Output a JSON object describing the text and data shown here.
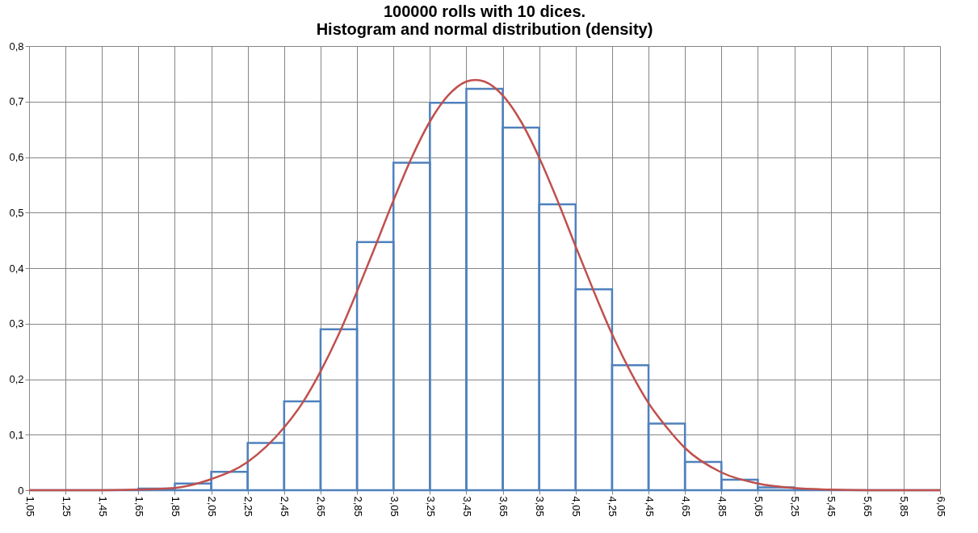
{
  "chart_data": {
    "type": "histogram",
    "title": "100000 rolls with 10 dices.\nHistogram and normal distribution (density)",
    "series": [
      {
        "color": "#4f81bd",
        "bins": [
          1.05,
          1.25,
          1.45,
          1.65,
          1.85,
          2.05,
          2.25,
          2.45,
          2.65,
          2.85,
          3.05,
          3.25,
          3.45,
          3.65,
          3.85,
          4.05,
          4.25,
          4.45,
          4.65,
          4.85,
          5.05,
          5.25,
          5.45,
          5.65,
          5.85,
          6.05
        ],
        "values": [
          0,
          0,
          0,
          0.003,
          0.012,
          0.033,
          0.085,
          0.16,
          0.29,
          0.447,
          0.59,
          0.698,
          0.723,
          0.653,
          0.515,
          0.362,
          0.225,
          0.12,
          0.051,
          0.019,
          0.005,
          0.001,
          0,
          0,
          0
        ]
      },
      {
        "type": "line",
        "color": "#c0504d",
        "x": [
          1.05,
          1.45,
          1.65,
          1.85,
          2.05,
          2.25,
          2.45,
          2.55,
          2.65,
          2.75,
          2.85,
          2.95,
          3.05,
          3.15,
          3.25,
          3.35,
          3.45,
          3.5,
          3.55,
          3.65,
          3.75,
          3.85,
          3.95,
          4.05,
          4.15,
          4.25,
          4.35,
          4.45,
          4.55,
          4.65,
          4.85,
          5.05,
          5.25,
          5.45,
          5.65,
          6.05
        ],
        "values": [
          0,
          0,
          0.001,
          0.004,
          0.02,
          0.051,
          0.113,
          0.157,
          0.214,
          0.281,
          0.358,
          0.439,
          0.522,
          0.599,
          0.664,
          0.711,
          0.736,
          0.739,
          0.736,
          0.711,
          0.664,
          0.599,
          0.522,
          0.439,
          0.358,
          0.281,
          0.214,
          0.157,
          0.113,
          0.076,
          0.032,
          0.012,
          0.004,
          0.001,
          0,
          0
        ]
      }
    ],
    "xlim": [
      1.05,
      6.05
    ],
    "xticks": [
      {
        "value": 1.05,
        "label": "1,05"
      },
      {
        "value": 1.25,
        "label": "1,25"
      },
      {
        "value": 1.45,
        "label": "1,45"
      },
      {
        "value": 1.65,
        "label": "1,65"
      },
      {
        "value": 1.85,
        "label": "1,85"
      },
      {
        "value": 2.05,
        "label": "2,05"
      },
      {
        "value": 2.25,
        "label": "2,25"
      },
      {
        "value": 2.45,
        "label": "2,45"
      },
      {
        "value": 2.65,
        "label": "2,65"
      },
      {
        "value": 2.85,
        "label": "2,85"
      },
      {
        "value": 3.05,
        "label": "3,05"
      },
      {
        "value": 3.25,
        "label": "3,25"
      },
      {
        "value": 3.45,
        "label": "3,45"
      },
      {
        "value": 3.65,
        "label": "3,65"
      },
      {
        "value": 3.85,
        "label": "3,85"
      },
      {
        "value": 4.05,
        "label": "4,05"
      },
      {
        "value": 4.25,
        "label": "4,25"
      },
      {
        "value": 4.45,
        "label": "4,45"
      },
      {
        "value": 4.65,
        "label": "4,65"
      },
      {
        "value": 4.85,
        "label": "4,85"
      },
      {
        "value": 5.05,
        "label": "5,05"
      },
      {
        "value": 5.25,
        "label": "5,25"
      },
      {
        "value": 5.45,
        "label": "5,45"
      },
      {
        "value": 5.65,
        "label": "5,65"
      },
      {
        "value": 5.85,
        "label": "5,85"
      },
      {
        "value": 6.05,
        "label": "6,05"
      }
    ],
    "ylim": [
      0,
      0.8
    ],
    "yticks": [
      0,
      {
        "value": 0.1,
        "label": "0,1"
      },
      {
        "value": 0.2,
        "label": "0,2"
      },
      {
        "value": 0.3,
        "label": "0,3"
      },
      {
        "value": 0.4,
        "label": "0,4"
      },
      {
        "value": 0.5,
        "label": "0,5"
      },
      {
        "value": 0.6,
        "label": "0,6"
      },
      {
        "value": 0.7,
        "label": "0,7"
      },
      {
        "value": 0.8,
        "label": "0,8"
      }
    ],
    "grid": true,
    "marker": "none",
    "line_style": "solid"
  }
}
